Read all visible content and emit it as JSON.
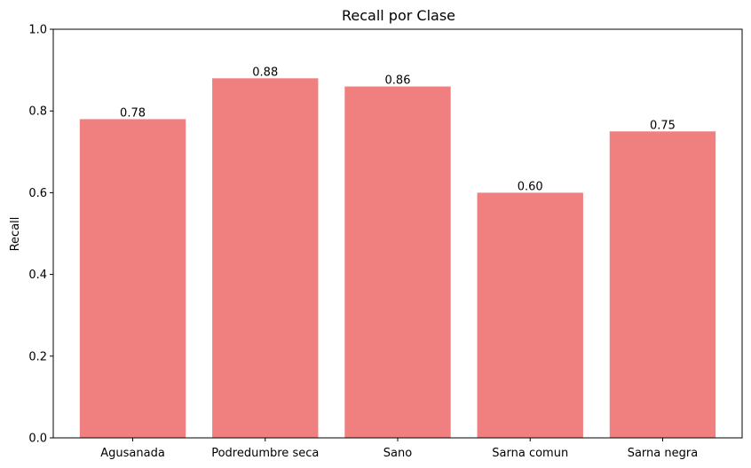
{
  "chart_data": {
    "type": "bar",
    "title": "Recall por Clase",
    "xlabel": "",
    "ylabel": "Recall",
    "categories": [
      "Agusanada",
      "Podredumbre seca",
      "Sano",
      "Sarna comun",
      "Sarna negra"
    ],
    "values": [
      0.78,
      0.88,
      0.86,
      0.6,
      0.75
    ],
    "data_labels": [
      "0.78",
      "0.88",
      "0.86",
      "0.60",
      "0.75"
    ],
    "ylim": [
      0,
      1.0
    ],
    "yticks": [
      "0.0",
      "0.2",
      "0.4",
      "0.6",
      "0.8",
      "1.0"
    ],
    "bar_color": "#f08080",
    "grid": false,
    "legend": "none"
  }
}
